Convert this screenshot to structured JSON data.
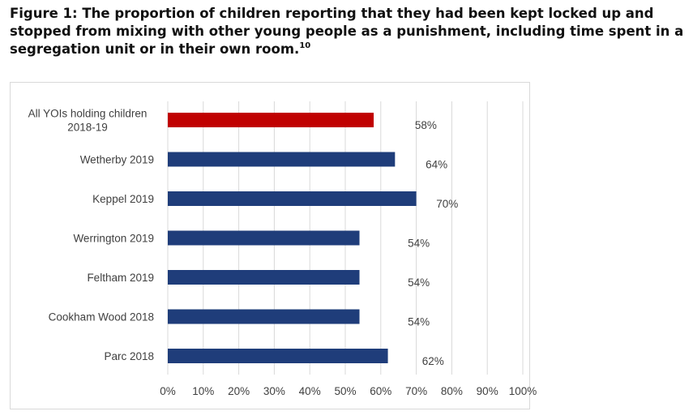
{
  "figure": {
    "title": "Figure 1: The proportion of children reporting that they had been kept locked up and stopped from mixing with other young people as a punishment, including time spent in a segregation unit or in their own room.",
    "footnote_marker": "10"
  },
  "chart_data": {
    "type": "bar",
    "orientation": "horizontal",
    "title": "",
    "xlabel": "",
    "ylabel": "",
    "categories": [
      [
        "All YOIs holding children",
        "2018-19"
      ],
      [
        "Wetherby  2019"
      ],
      [
        "Keppel 2019"
      ],
      [
        "Werrington 2019"
      ],
      [
        "Feltham 2019"
      ],
      [
        "Cookham Wood 2018"
      ],
      [
        "Parc 2018"
      ]
    ],
    "values": [
      58,
      64,
      70,
      54,
      54,
      54,
      62
    ],
    "data_labels": [
      "58%",
      "64%",
      "70%",
      "54%",
      "54%",
      "54%",
      "62%"
    ],
    "bar_colors": [
      "#c00000",
      "#1f3d7a",
      "#1f3d7a",
      "#1f3d7a",
      "#1f3d7a",
      "#1f3d7a",
      "#1f3d7a"
    ],
    "xlim": [
      0,
      100
    ],
    "x_ticks": [
      0,
      10,
      20,
      30,
      40,
      50,
      60,
      70,
      80,
      90,
      100
    ],
    "x_tick_labels": [
      "0%",
      "10%",
      "20%",
      "30%",
      "40%",
      "50%",
      "60%",
      "70%",
      "80%",
      "90%",
      "100%"
    ],
    "grid": true,
    "legend": "none"
  }
}
